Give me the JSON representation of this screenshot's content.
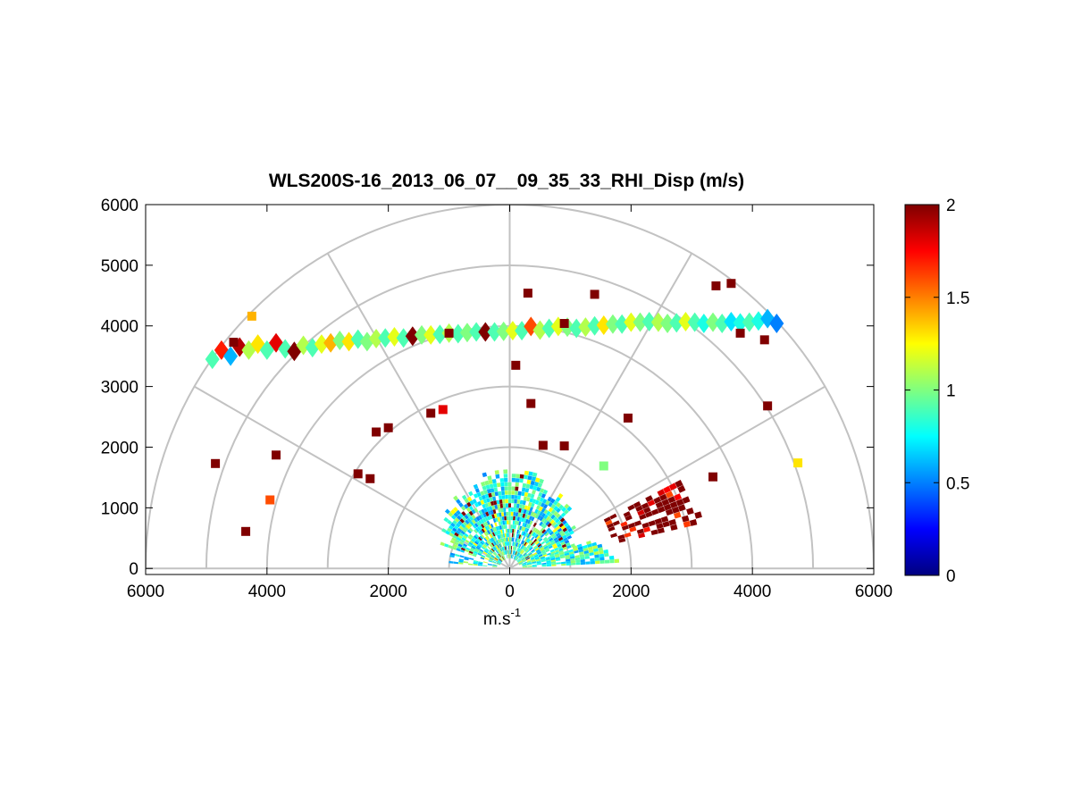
{
  "chart_data": {
    "type": "heatmap",
    "subtype": "polar-rhi",
    "title": "WLS200S-16_2013_06_07__09_35_33_RHI_Disp (m/s)",
    "xlabel": "m.s",
    "xlabel_superscript": "-1",
    "ylabel": "",
    "xlim": [
      -6000,
      6000
    ],
    "ylim": [
      -100,
      6000
    ],
    "x_tick_values": [
      -6000,
      -4000,
      -2000,
      0,
      2000,
      4000,
      6000
    ],
    "x_tick_labels": [
      "6000",
      "4000",
      "2000",
      "0",
      "2000",
      "4000",
      "6000"
    ],
    "y_tick_values": [
      0,
      1000,
      2000,
      3000,
      4000,
      5000,
      6000
    ],
    "y_tick_labels": [
      "0",
      "1000",
      "2000",
      "3000",
      "4000",
      "5000",
      "6000"
    ],
    "polar_rings": [
      1000,
      2000,
      3000,
      4000,
      5000,
      6000
    ],
    "polar_spokes_deg": [
      0,
      30,
      60,
      90,
      120,
      150,
      180
    ],
    "colorbar": {
      "range": [
        0,
        2
      ],
      "tick_values": [
        0,
        0.5,
        1,
        1.5,
        2
      ],
      "tick_labels": [
        "0",
        "0.5",
        "1",
        "1.5",
        "2"
      ],
      "colormap": "jet"
    },
    "features": {
      "cloud_layer": [
        [
          -4900,
          3450,
          0.9
        ],
        [
          -4750,
          3600,
          1.7
        ],
        [
          -4600,
          3500,
          0.6
        ],
        [
          -4450,
          3650,
          1.9
        ],
        [
          -4300,
          3600,
          1.1
        ],
        [
          -4150,
          3700,
          1.3
        ],
        [
          -4000,
          3600,
          0.9
        ],
        [
          -3850,
          3720,
          1.8
        ],
        [
          -3700,
          3620,
          0.9
        ],
        [
          -3550,
          3580,
          2.0
        ],
        [
          -3400,
          3680,
          1.1
        ],
        [
          -3250,
          3640,
          0.9
        ],
        [
          -3100,
          3700,
          1.2
        ],
        [
          -2950,
          3720,
          1.4
        ],
        [
          -2800,
          3760,
          1.0
        ],
        [
          -2650,
          3740,
          1.3
        ],
        [
          -2500,
          3780,
          0.9
        ],
        [
          -2350,
          3740,
          1.0
        ],
        [
          -2200,
          3790,
          1.1
        ],
        [
          -2050,
          3800,
          0.9
        ],
        [
          -1900,
          3820,
          1.2
        ],
        [
          -1750,
          3800,
          0.9
        ],
        [
          -1600,
          3830,
          2.0
        ],
        [
          -1450,
          3850,
          1.0
        ],
        [
          -1300,
          3850,
          1.2
        ],
        [
          -1150,
          3860,
          0.9
        ],
        [
          -1000,
          3880,
          1.1
        ],
        [
          -850,
          3870,
          0.9
        ],
        [
          -700,
          3890,
          1.0
        ],
        [
          -550,
          3900,
          0.9
        ],
        [
          -400,
          3900,
          2.0
        ],
        [
          -250,
          3900,
          0.9
        ],
        [
          -100,
          3910,
          1.0
        ],
        [
          50,
          3920,
          1.2
        ],
        [
          200,
          3920,
          0.9
        ],
        [
          350,
          3990,
          1.6
        ],
        [
          500,
          3930,
          1.1
        ],
        [
          650,
          3960,
          0.9
        ],
        [
          800,
          3990,
          1.2
        ],
        [
          950,
          3980,
          1.0
        ],
        [
          1100,
          3960,
          0.9
        ],
        [
          1250,
          3980,
          1.1
        ],
        [
          1400,
          4000,
          0.9
        ],
        [
          1550,
          4010,
          1.3
        ],
        [
          1700,
          4030,
          1.0
        ],
        [
          1850,
          4030,
          0.9
        ],
        [
          2000,
          4060,
          1.2
        ],
        [
          2150,
          4060,
          1.0
        ],
        [
          2300,
          4070,
          0.9
        ],
        [
          2450,
          4060,
          1.1
        ],
        [
          2600,
          4040,
          1.0
        ],
        [
          2750,
          4050,
          0.9
        ],
        [
          2900,
          4070,
          1.2
        ],
        [
          3050,
          4060,
          0.9
        ],
        [
          3200,
          4040,
          0.8
        ],
        [
          3350,
          4060,
          1.0
        ],
        [
          3500,
          4040,
          0.9
        ],
        [
          3650,
          4070,
          0.7
        ],
        [
          3800,
          4050,
          0.8
        ],
        [
          3950,
          4060,
          0.9
        ],
        [
          4100,
          4080,
          0.8
        ],
        [
          4250,
          4120,
          0.6
        ],
        [
          4400,
          4040,
          0.5
        ]
      ],
      "near_field_cone": {
        "angle_range_deg": [
          20,
          160
        ],
        "range_m": [
          200,
          1400
        ],
        "typical_value": 0.8
      },
      "strong_sector": {
        "angle_range_deg": [
          14,
          28
        ],
        "range_m": [
          1800,
          3300
        ],
        "typical_value": 2.0
      },
      "sparse_points": [
        [
          300,
          4540,
          2.0
        ],
        [
          1400,
          4520,
          2.0
        ],
        [
          3400,
          4660,
          2.0
        ],
        [
          3650,
          4700,
          2.0
        ],
        [
          -4250,
          4160,
          1.4
        ],
        [
          -4550,
          3730,
          2.0
        ],
        [
          900,
          4040,
          2.0
        ],
        [
          -1000,
          3880,
          2.0
        ],
        [
          3800,
          3880,
          2.0
        ],
        [
          4200,
          3770,
          2.0
        ],
        [
          -2200,
          2250,
          2.0
        ],
        [
          -2000,
          2320,
          2.0
        ],
        [
          -1300,
          2560,
          2.0
        ],
        [
          -1100,
          2620,
          1.8
        ],
        [
          100,
          3350,
          2.0
        ],
        [
          350,
          2720,
          2.0
        ],
        [
          1950,
          2480,
          2.0
        ],
        [
          4250,
          2680,
          2.0
        ],
        [
          -4850,
          1730,
          2.0
        ],
        [
          -3850,
          1870,
          2.0
        ],
        [
          -2300,
          1480,
          2.0
        ],
        [
          -2500,
          1560,
          2.0
        ],
        [
          -3950,
          1130,
          1.6
        ],
        [
          -4350,
          610,
          2.0
        ],
        [
          4750,
          1740,
          1.3
        ],
        [
          3350,
          1510,
          2.0
        ],
        [
          900,
          2020,
          2.0
        ],
        [
          550,
          2030,
          2.0
        ],
        [
          1550,
          1690,
          1.0
        ]
      ]
    }
  }
}
